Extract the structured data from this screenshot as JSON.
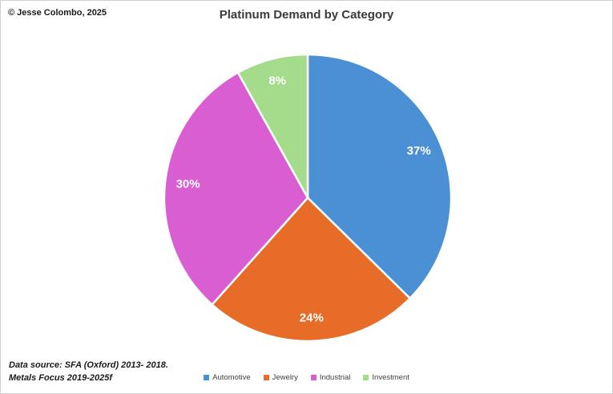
{
  "header": {
    "copyright": "© Jesse Colombo, 2025",
    "title": "Platinum Demand by Category"
  },
  "footer": {
    "source_line1": "Data source: SFA (Oxford) 2013- 2018.",
    "source_line2": "Metals Focus 2019-2025f"
  },
  "chart_data": {
    "type": "pie",
    "title": "Platinum Demand by Category",
    "categories": [
      "Automotive",
      "Jewelry",
      "Industrial",
      "Investment"
    ],
    "values": [
      37,
      24,
      30,
      8
    ],
    "labels": [
      "37%",
      "24%",
      "30%",
      "8%"
    ],
    "colors": [
      "#4b8fd5",
      "#e66c28",
      "#d95ed1",
      "#a5dc8c"
    ],
    "start_angle_deg": 0,
    "direction": "clockwise",
    "legend_position": "bottom",
    "label_color": "#ffffff"
  }
}
